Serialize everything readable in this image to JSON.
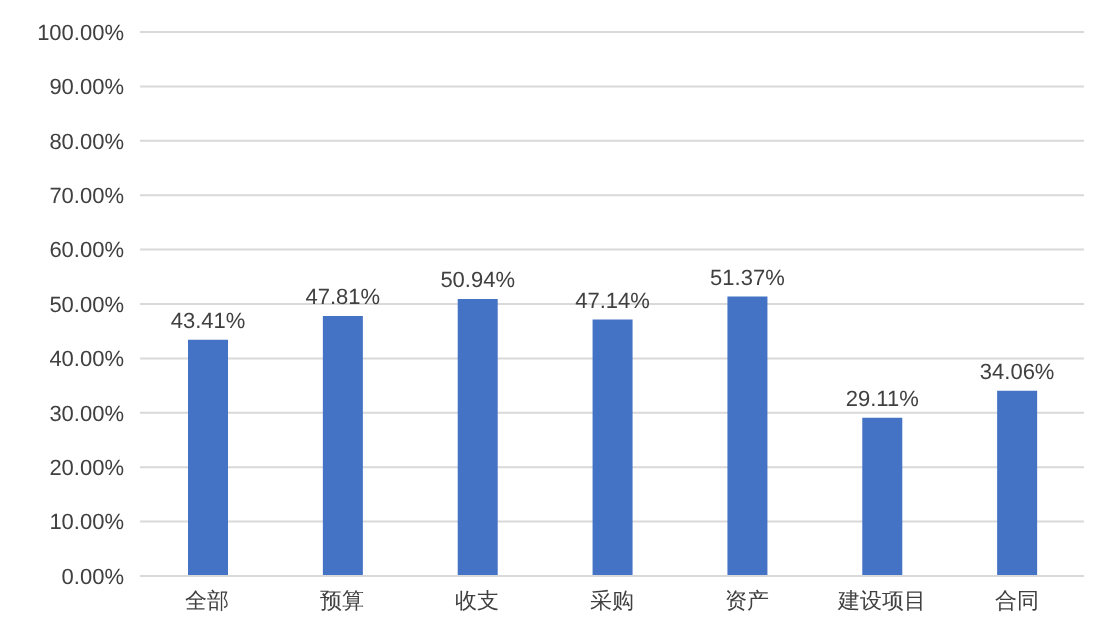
{
  "chart_data": {
    "type": "bar",
    "categories": [
      "全部",
      "预算",
      "收支",
      "采购",
      "资产",
      "建设项目",
      "合同"
    ],
    "values": [
      43.41,
      47.81,
      50.94,
      47.14,
      51.37,
      29.11,
      34.06
    ],
    "value_labels": [
      "43.41%",
      "47.81%",
      "50.94%",
      "47.14%",
      "51.37%",
      "29.11%",
      "34.06%"
    ],
    "color": "#4472c4",
    "ylim": [
      0,
      100
    ],
    "yticks": [
      {
        "value": 0,
        "label": "0.00%"
      },
      {
        "value": 10,
        "label": "10.00%"
      },
      {
        "value": 20,
        "label": "20.00%"
      },
      {
        "value": 30,
        "label": "30.00%"
      },
      {
        "value": 40,
        "label": "40.00%"
      },
      {
        "value": 50,
        "label": "50.00%"
      },
      {
        "value": 60,
        "label": "60.00%"
      },
      {
        "value": 70,
        "label": "70.00%"
      },
      {
        "value": 80,
        "label": "80.00%"
      },
      {
        "value": 90,
        "label": "90.00%"
      },
      {
        "value": 100,
        "label": "100.00%"
      }
    ],
    "grid": "y",
    "legend": false
  }
}
